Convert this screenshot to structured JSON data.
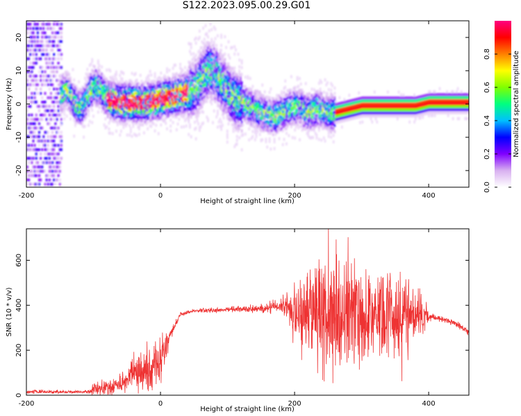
{
  "title": "S122.2023.095.00.29.G01",
  "chart_data": [
    {
      "type": "heatmap",
      "xlabel": "Height of straight line (km)",
      "ylabel": "Frequency (Hz)",
      "xlim": [
        -200,
        460
      ],
      "ylim": [
        -25,
        25
      ],
      "xticks": [
        "-200",
        "0",
        "200",
        "400"
      ],
      "xtick_values": [
        -200,
        0,
        200,
        400
      ],
      "yticks": [
        "20",
        "10",
        "0",
        "-10",
        "-20"
      ],
      "ytick_values": [
        20,
        10,
        0,
        -10,
        -20
      ],
      "colorbar": {
        "label": "Normalized spectral amplitude",
        "ticks": [
          "0.0",
          "0.2",
          "0.4",
          "0.6",
          "0.8"
        ],
        "tick_values": [
          0.0,
          0.2,
          0.4,
          0.6,
          0.8
        ],
        "range": [
          0,
          1
        ],
        "colormap": [
          "#ffffff",
          "#d8b0f0",
          "#8000ff",
          "#0000ff",
          "#00c0ff",
          "#00ff80",
          "#80ff00",
          "#ffff00",
          "#ff8000",
          "#ff0000",
          "#ff0080"
        ]
      },
      "ridge": {
        "x": [
          -150,
          -140,
          -130,
          -120,
          -110,
          -100,
          -90,
          -80,
          -60,
          -40,
          -20,
          0,
          20,
          40,
          50,
          60,
          70,
          80,
          90,
          100,
          110,
          120,
          130,
          140,
          150,
          160,
          170,
          180,
          190,
          200,
          210,
          220,
          230,
          240,
          250,
          260,
          280,
          300,
          320,
          340,
          360,
          380,
          400,
          420,
          440,
          460
        ],
        "y": [
          2,
          4,
          0,
          -2,
          2,
          5,
          4,
          1,
          0,
          0,
          0,
          1,
          2,
          3,
          4,
          7,
          10,
          9,
          6,
          3,
          1,
          0,
          -1,
          -2,
          -3,
          -4,
          -4,
          -3,
          -2,
          -1,
          -2,
          -3,
          -2,
          -2,
          -3,
          -3,
          -2,
          -1,
          -1,
          -1,
          -1,
          -1,
          0,
          0,
          0,
          0
        ],
        "peak_amplitude_range_x": [
          -40,
          400
        ]
      }
    },
    {
      "type": "line",
      "xlabel": "Height of straight line (km)",
      "ylabel": "SNR (10 * v/v)",
      "xlim": [
        -200,
        460
      ],
      "ylim": [
        0,
        740
      ],
      "xticks": [
        "-200",
        "0",
        "200",
        "400"
      ],
      "xtick_values": [
        -200,
        0,
        200,
        400
      ],
      "yticks": [
        "600",
        "400",
        "200",
        "0"
      ],
      "ytick_values": [
        600,
        400,
        200,
        0
      ],
      "color": "#ee3333",
      "envelope": {
        "x": [
          -200,
          -150,
          -110,
          -100,
          -60,
          -40,
          -20,
          0,
          10,
          20,
          30,
          50,
          100,
          150,
          180,
          190,
          200,
          210,
          230,
          250,
          260,
          280,
          300,
          320,
          340,
          360,
          380,
          390,
          400,
          420,
          440,
          460
        ],
        "mean": [
          15,
          15,
          15,
          25,
          45,
          100,
          110,
          150,
          240,
          300,
          360,
          375,
          380,
          385,
          400,
          390,
          380,
          360,
          360,
          370,
          370,
          360,
          360,
          360,
          360,
          360,
          360,
          360,
          350,
          340,
          320,
          280
        ],
        "spread": [
          10,
          8,
          8,
          30,
          50,
          90,
          110,
          130,
          60,
          20,
          10,
          10,
          15,
          20,
          40,
          80,
          150,
          220,
          250,
          320,
          300,
          280,
          300,
          200,
          220,
          250,
          150,
          130,
          20,
          15,
          15,
          15
        ]
      }
    }
  ]
}
